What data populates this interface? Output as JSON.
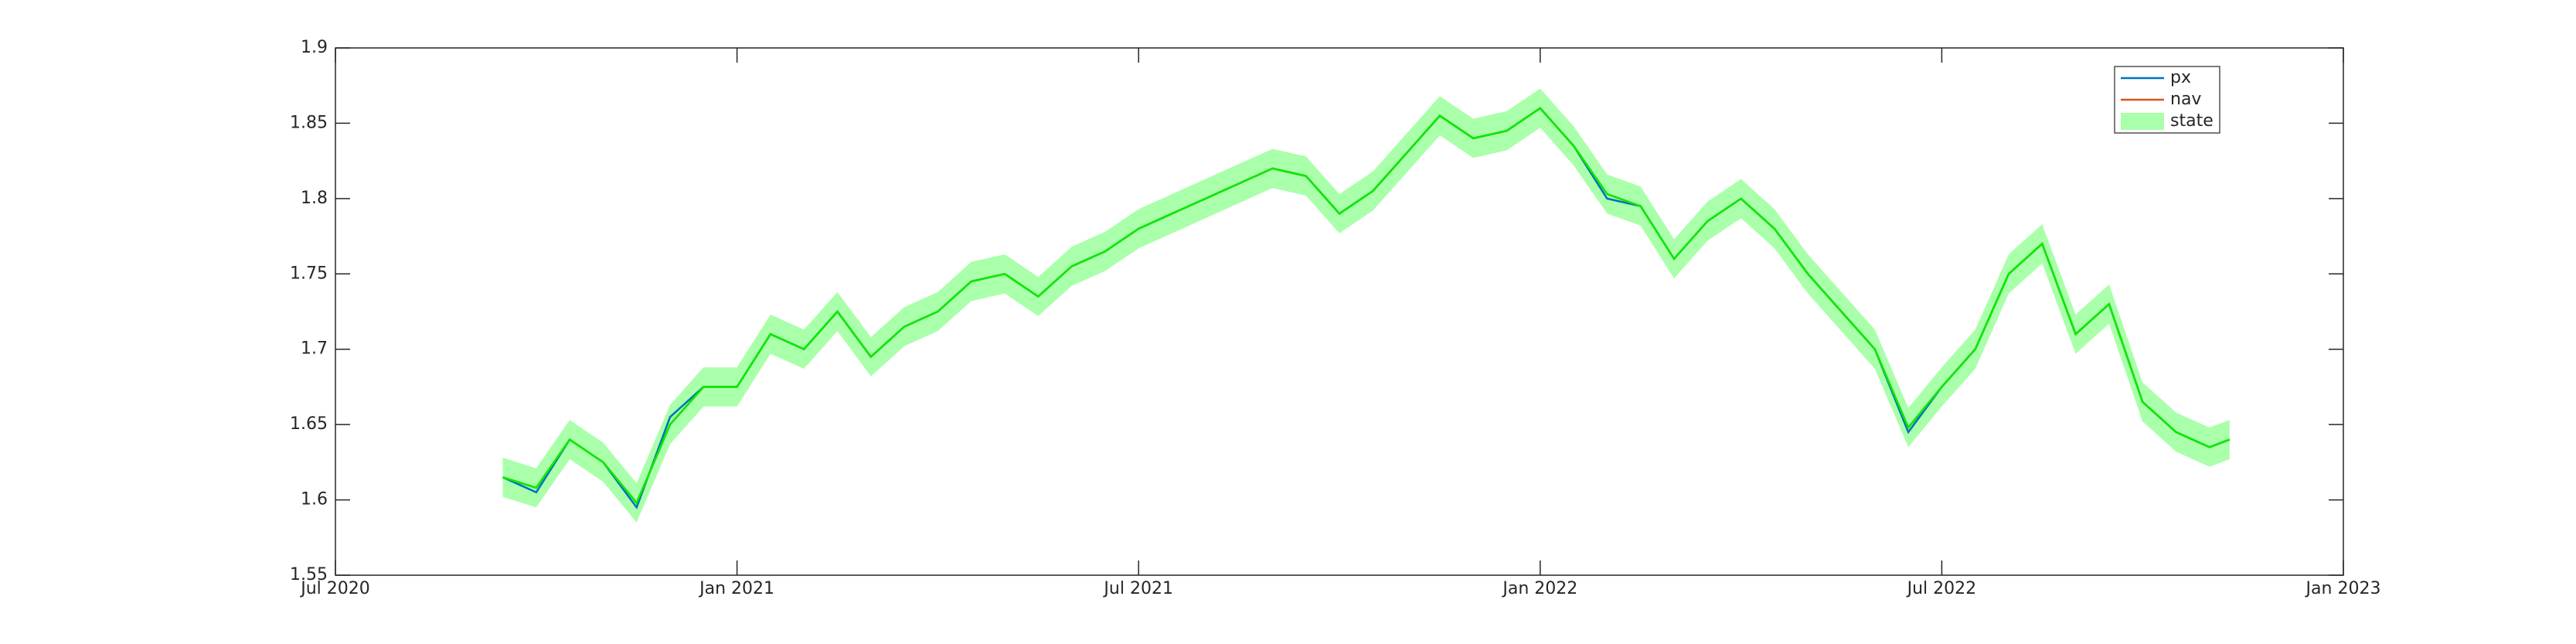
{
  "chart_data": {
    "type": "line",
    "xlim": [
      0,
      30
    ],
    "xticks": [
      {
        "value": 0,
        "label": "Jul 2020"
      },
      {
        "value": 6,
        "label": "Jan 2021"
      },
      {
        "value": 12,
        "label": "Jul 2021"
      },
      {
        "value": 18,
        "label": "Jan 2022"
      },
      {
        "value": 24,
        "label": "Jul 2022"
      },
      {
        "value": 30,
        "label": "Jan 2023"
      }
    ],
    "ylim": [
      1.55,
      1.9
    ],
    "yticks": [
      1.55,
      1.6,
      1.65,
      1.7,
      1.75,
      1.8,
      1.85,
      1.9
    ],
    "legend": "upper right",
    "x": [
      2.5,
      3,
      3.5,
      4,
      4.5,
      5,
      5.5,
      6,
      6.5,
      7,
      7.5,
      8,
      8.5,
      9,
      9.5,
      10,
      10.5,
      11,
      11.5,
      12,
      12.5,
      13,
      13.5,
      14,
      14.5,
      15,
      15.5,
      16,
      16.5,
      17,
      17.5,
      18,
      18.5,
      19,
      19.5,
      20,
      20.5,
      21,
      21.5,
      22,
      22.5,
      23,
      23.5,
      24,
      24.5,
      25,
      25.5,
      26,
      26.5,
      27,
      27.5,
      28,
      28.3
    ],
    "series": [
      {
        "name": "px",
        "color": "#0072bd",
        "values": [
          1.615,
          1.605,
          1.64,
          1.625,
          1.595,
          1.655,
          1.675,
          1.675,
          1.71,
          1.7,
          1.725,
          1.695,
          1.715,
          1.725,
          1.745,
          1.75,
          1.735,
          1.755,
          1.765,
          1.78,
          1.79,
          1.8,
          1.81,
          1.82,
          1.815,
          1.79,
          1.805,
          1.83,
          1.855,
          1.84,
          1.845,
          1.86,
          1.835,
          1.8,
          1.795,
          1.76,
          1.785,
          1.8,
          1.78,
          1.75,
          1.725,
          1.7,
          1.645,
          1.675,
          1.7,
          1.75,
          1.77,
          1.71,
          1.73,
          1.665,
          1.645,
          1.635,
          1.64
        ]
      },
      {
        "name": "nav",
        "color": "#d95319",
        "values": [
          1.615,
          1.608,
          1.64,
          1.625,
          1.598,
          1.65,
          1.675,
          1.675,
          1.71,
          1.7,
          1.725,
          1.695,
          1.715,
          1.725,
          1.745,
          1.75,
          1.735,
          1.755,
          1.765,
          1.78,
          1.79,
          1.8,
          1.81,
          1.82,
          1.815,
          1.79,
          1.805,
          1.83,
          1.855,
          1.84,
          1.845,
          1.86,
          1.835,
          1.803,
          1.795,
          1.76,
          1.785,
          1.8,
          1.78,
          1.75,
          1.725,
          1.7,
          1.648,
          1.675,
          1.7,
          1.75,
          1.77,
          1.71,
          1.73,
          1.665,
          1.645,
          1.635,
          1.64
        ]
      },
      {
        "name": "state",
        "color": "#00ee00",
        "band_color": "#aaffaa",
        "values": [
          1.615,
          1.608,
          1.64,
          1.625,
          1.598,
          1.65,
          1.675,
          1.675,
          1.71,
          1.7,
          1.725,
          1.695,
          1.715,
          1.725,
          1.745,
          1.75,
          1.735,
          1.755,
          1.765,
          1.78,
          1.79,
          1.8,
          1.81,
          1.82,
          1.815,
          1.79,
          1.805,
          1.83,
          1.855,
          1.84,
          1.845,
          1.86,
          1.835,
          1.803,
          1.795,
          1.76,
          1.785,
          1.8,
          1.78,
          1.75,
          1.725,
          1.7,
          1.648,
          1.675,
          1.7,
          1.75,
          1.77,
          1.71,
          1.73,
          1.665,
          1.645,
          1.635,
          1.64
        ],
        "upper": [
          1.628,
          1.621,
          1.653,
          1.638,
          1.611,
          1.663,
          1.688,
          1.688,
          1.723,
          1.713,
          1.738,
          1.708,
          1.728,
          1.738,
          1.758,
          1.763,
          1.748,
          1.768,
          1.778,
          1.793,
          1.803,
          1.813,
          1.823,
          1.833,
          1.828,
          1.803,
          1.818,
          1.843,
          1.868,
          1.853,
          1.858,
          1.873,
          1.848,
          1.816,
          1.808,
          1.773,
          1.798,
          1.813,
          1.793,
          1.763,
          1.738,
          1.713,
          1.661,
          1.688,
          1.713,
          1.763,
          1.783,
          1.723,
          1.743,
          1.678,
          1.658,
          1.648,
          1.653
        ],
        "lower": [
          1.602,
          1.595,
          1.627,
          1.612,
          1.585,
          1.637,
          1.662,
          1.662,
          1.697,
          1.687,
          1.712,
          1.682,
          1.702,
          1.712,
          1.732,
          1.737,
          1.722,
          1.742,
          1.752,
          1.767,
          1.777,
          1.787,
          1.797,
          1.807,
          1.802,
          1.777,
          1.792,
          1.817,
          1.842,
          1.827,
          1.832,
          1.847,
          1.822,
          1.79,
          1.782,
          1.747,
          1.772,
          1.787,
          1.767,
          1.737,
          1.712,
          1.687,
          1.635,
          1.662,
          1.687,
          1.737,
          1.757,
          1.697,
          1.717,
          1.652,
          1.632,
          1.622,
          1.627
        ]
      }
    ]
  }
}
